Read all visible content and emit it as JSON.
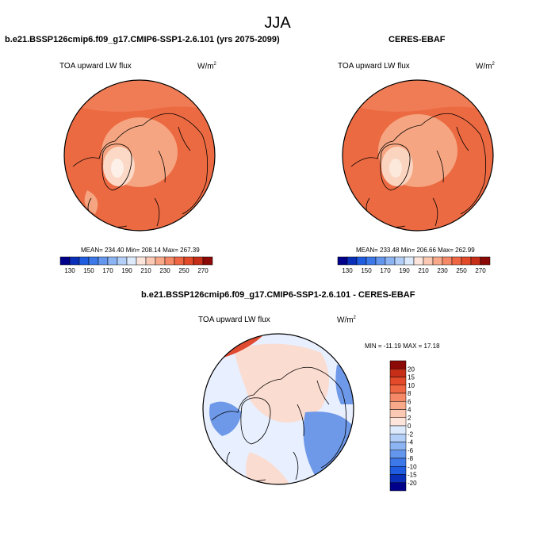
{
  "figure": {
    "title": "JJA"
  },
  "panels": [
    {
      "id": "model",
      "title": "b.e21.BSSP126cmip6.f09_g17.CMIP6-SSP1-2.6.101 (yrs 2075-2099)",
      "variable": "TOA upward LW flux",
      "units_base": "W/m",
      "units_exp": "2",
      "stats": "MEAN= 234.40  Min= 208.14  Max= 267.39",
      "colorbar": {
        "orientation": "horizontal",
        "colors": [
          "#00008b",
          "#0a2fb8",
          "#1f5ce0",
          "#3c78e8",
          "#6496ee",
          "#8cb4f2",
          "#b4cff7",
          "#dceafc",
          "#fde5dc",
          "#fbc9b3",
          "#f8a98a",
          "#f58866",
          "#ef6642",
          "#e34a2a",
          "#c62e18",
          "#8b0a07"
        ],
        "labels": [
          "130",
          "150",
          "170",
          "190",
          "210",
          "230",
          "250",
          "270"
        ]
      },
      "map_field_colors": [
        "#f5a581",
        "#f07c55",
        "#ec6a42"
      ]
    },
    {
      "id": "obs",
      "title": "CERES-EBAF",
      "variable": "TOA upward LW flux",
      "units_base": "W/m",
      "units_exp": "2",
      "stats": "MEAN= 233.48  Min= 206.66  Max= 262.99",
      "colorbar": {
        "orientation": "horizontal",
        "colors": [
          "#00008b",
          "#0a2fb8",
          "#1f5ce0",
          "#3c78e8",
          "#6496ee",
          "#8cb4f2",
          "#b4cff7",
          "#dceafc",
          "#fde5dc",
          "#fbc9b3",
          "#f8a98a",
          "#f58866",
          "#ef6642",
          "#e34a2a",
          "#c62e18",
          "#8b0a07"
        ],
        "labels": [
          "130",
          "150",
          "170",
          "190",
          "210",
          "230",
          "250",
          "270"
        ]
      },
      "map_field_colors": [
        "#f5a581",
        "#f07c55",
        "#ec6a42"
      ]
    },
    {
      "id": "diff",
      "title": "b.e21.BSSP126cmip6.f09_g17.CMIP6-SSP1-2.6.101 - CERES-EBAF",
      "variable": "TOA upward LW flux",
      "units_base": "W/m",
      "units_exp": "2",
      "stats": "MIN = -11.19 MAX =  17.18",
      "colorbar": {
        "orientation": "vertical",
        "colors": [
          "#8b0a07",
          "#c62e18",
          "#e34a2a",
          "#ef6642",
          "#f58866",
          "#f8a98a",
          "#fbc9b3",
          "#fde5dc",
          "#dceafc",
          "#b4cff7",
          "#8cb4f2",
          "#6496ee",
          "#3c78e8",
          "#1f5ce0",
          "#0a2fb8",
          "#00008b"
        ],
        "labels": [
          "20",
          "15",
          "10",
          "8",
          "6",
          "4",
          "2",
          "0",
          "-2",
          "-4",
          "-6",
          "-8",
          "-10",
          "-15",
          "-20"
        ]
      },
      "map_field_colors": [
        "#e8efff",
        "#fbdcd0",
        "#6e98e8",
        "#e04a30"
      ]
    }
  ]
}
